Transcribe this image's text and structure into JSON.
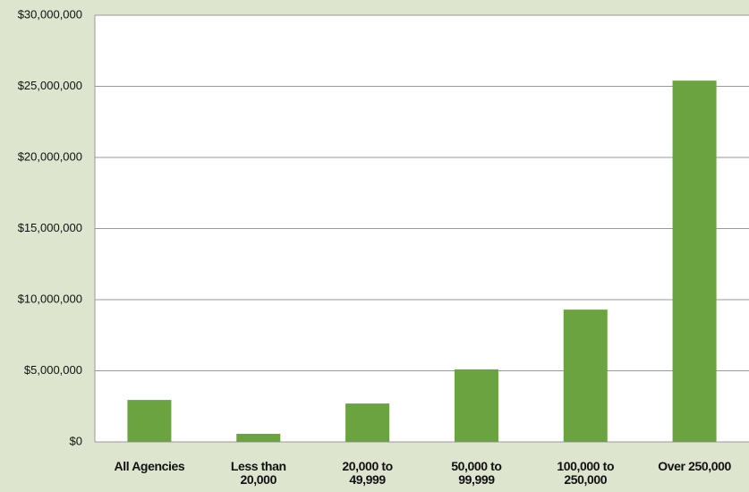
{
  "chart_data": {
    "type": "bar",
    "categories": [
      "All Agencies",
      "Less than 20,000",
      "20,000 to 49,999",
      "50,000 to 99,999",
      "100,000 to 250,000",
      "Over 250,000"
    ],
    "values": [
      2950000,
      570000,
      2700000,
      5100000,
      9300000,
      25400000
    ],
    "color": "#6aa33f",
    "ylim": [
      0,
      30000000
    ],
    "yticks": [
      {
        "value": 0,
        "label": "$0"
      },
      {
        "value": 5000000,
        "label": "$5,000,000"
      },
      {
        "value": 10000000,
        "label": "$10,000,000"
      },
      {
        "value": 15000000,
        "label": "$15,000,000"
      },
      {
        "value": 20000000,
        "label": "$20,000,000"
      },
      {
        "value": 25000000,
        "label": "$25,000,000"
      },
      {
        "value": 30000000,
        "label": "$30,000,000"
      }
    ],
    "grid": true
  }
}
